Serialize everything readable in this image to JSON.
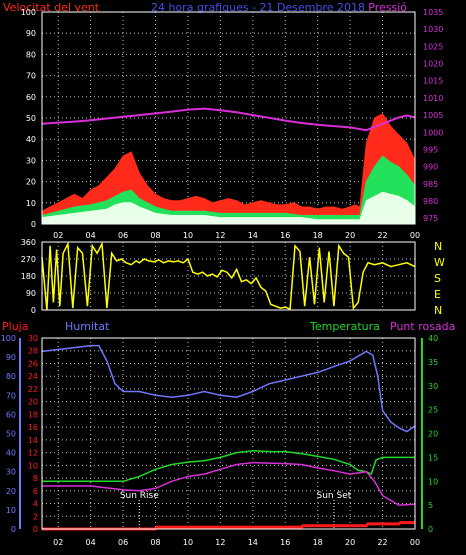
{
  "colors": {
    "background": "#000000",
    "frame": "#ffffff",
    "grid": "#bfbfbf",
    "tick_text": "#ffffff",
    "wind_peak": "#ff2a1a",
    "wind_mid": "#22e05a",
    "wind_avg": "#e8ffe8",
    "pressure": "#d82fd8",
    "title": "#3f4fe8",
    "wind_dir": "#ffff00",
    "compass": "#ffff00",
    "rain": "#ff1a1a",
    "humidity": "#6f78ff",
    "temperature": "#22d82a",
    "dewpoint": "#d82fd8",
    "sun_marker": "#ffffff"
  },
  "chart_data": [
    {
      "type": "line",
      "panel": "wind-and-pressure",
      "title": "24 hora grafiques - 21 Desembre 2018",
      "left_label": "Velocitat del vent",
      "right_label": "Pressió",
      "x_ticks": [
        "02",
        "04",
        "06",
        "08",
        "10",
        "12",
        "14",
        "16",
        "18",
        "20",
        "22",
        "00"
      ],
      "x_range": [
        1,
        24
      ],
      "ylim": [
        0,
        100
      ],
      "y_ticks": [
        0,
        10,
        20,
        30,
        40,
        50,
        60,
        70,
        80,
        90,
        100
      ],
      "y2lim": [
        973.3,
        1035
      ],
      "y2_ticks": [
        975,
        980,
        985,
        990,
        995,
        1000,
        1005,
        1010,
        1015,
        1020,
        1025,
        1030,
        1035
      ],
      "grid": true,
      "series": [
        {
          "name": "Velocitat del vent",
          "color_key": "wind_peak",
          "axis": "left",
          "style": "filled",
          "x": [
            1,
            1.5,
            2,
            2.5,
            3,
            3.5,
            4,
            4.5,
            5,
            5.5,
            6,
            6.5,
            7,
            7.5,
            8,
            8.5,
            9,
            9.5,
            10,
            10.5,
            11,
            11.5,
            12,
            12.5,
            13,
            13.5,
            14,
            14.5,
            15,
            15.5,
            16,
            16.5,
            17,
            17.5,
            18,
            18.5,
            19,
            19.5,
            20,
            20.3,
            20.6,
            21,
            21.5,
            22,
            22.5,
            23,
            23.5,
            24
          ],
          "values": [
            6,
            8,
            10,
            12,
            14,
            12,
            16,
            18,
            22,
            26,
            32,
            34,
            24,
            18,
            14,
            12,
            11,
            11,
            12,
            13,
            12,
            10,
            11,
            12,
            11,
            9,
            10,
            11,
            10,
            9,
            9,
            10,
            8,
            8,
            7,
            8,
            8,
            7,
            8,
            9,
            8,
            38,
            50,
            52,
            46,
            42,
            38,
            30
          ]
        },
        {
          "name": "",
          "color_key": "wind_mid",
          "axis": "left",
          "style": "filled",
          "x": [
            1,
            2,
            3,
            4,
            5,
            5.5,
            6,
            6.5,
            7,
            8,
            9,
            10,
            11,
            12,
            13,
            14,
            15,
            16,
            17,
            18,
            19,
            20,
            20.3,
            20.6,
            21,
            21.5,
            22,
            22.5,
            23,
            23.5,
            24
          ],
          "values": [
            4,
            6,
            8,
            9,
            11,
            13,
            15,
            16,
            12,
            8,
            6,
            6,
            6,
            5,
            5,
            5,
            5,
            5,
            4,
            4,
            4,
            4,
            4,
            4,
            20,
            27,
            32,
            29,
            27,
            23,
            18
          ]
        },
        {
          "name": "",
          "color_key": "wind_avg",
          "axis": "left",
          "style": "filled",
          "x": [
            1,
            2,
            3,
            4,
            5,
            5.5,
            6,
            6.5,
            7,
            8,
            9,
            10,
            11,
            12,
            13,
            14,
            15,
            16,
            17,
            18,
            19,
            20,
            20.3,
            20.6,
            21,
            21.5,
            22,
            22.5,
            23,
            23.5,
            24
          ],
          "values": [
            3,
            4,
            5,
            6,
            7,
            9,
            10,
            10,
            8,
            5,
            4,
            4,
            4,
            3,
            3,
            3,
            3,
            3,
            3,
            2,
            2,
            2,
            2,
            2,
            11,
            13,
            15,
            14,
            13,
            11,
            8
          ]
        },
        {
          "name": "Pressió",
          "color_key": "pressure",
          "axis": "right",
          "style": "line",
          "x": [
            1,
            2,
            3,
            4,
            5,
            6,
            7,
            8,
            9,
            10,
            11,
            12,
            13,
            14,
            15,
            16,
            17,
            18,
            19,
            20,
            21,
            22,
            23,
            23.5,
            24
          ],
          "values": [
            1002.5,
            1002.8,
            1003.1,
            1003.5,
            1004,
            1004.5,
            1005,
            1005.5,
            1006,
            1006.6,
            1006.9,
            1006.4,
            1005.8,
            1005,
            1004.2,
            1003.4,
            1002.7,
            1002.2,
            1001.8,
            1001.4,
            1000.6,
            1002.5,
            1004.3,
            1004.9,
            1004.3
          ]
        }
      ]
    },
    {
      "type": "line",
      "panel": "wind-direction",
      "x_range": [
        1,
        24
      ],
      "ylim": [
        0,
        360
      ],
      "y_ticks": [
        0,
        90,
        180,
        270,
        360
      ],
      "compass": [
        "N",
        "W",
        "S",
        "E",
        "N"
      ],
      "grid": true,
      "series": [
        {
          "name": "",
          "color_key": "wind_dir",
          "x": [
            1,
            1.3,
            1.5,
            1.7,
            1.9,
            2.1,
            2.3,
            2.6,
            2.9,
            3.2,
            3.5,
            3.8,
            4.1,
            4.4,
            4.7,
            5,
            5.3,
            5.6,
            5.9,
            6.2,
            6.5,
            6.8,
            7,
            7.3,
            7.6,
            7.9,
            8.2,
            8.5,
            8.8,
            9.1,
            9.4,
            9.7,
            10,
            10.3,
            10.6,
            10.9,
            11.2,
            11.5,
            11.8,
            12.1,
            12.4,
            12.7,
            13,
            13.3,
            13.6,
            13.9,
            14.2,
            14.5,
            14.8,
            15.1,
            15.4,
            15.7,
            16,
            16.3,
            16.6,
            16.9,
            17.2,
            17.5,
            17.8,
            18.1,
            18.4,
            18.7,
            19,
            19.3,
            19.6,
            19.9,
            20.2,
            20.5,
            20.8,
            21.1,
            21.5,
            22,
            22.5,
            23,
            23.5,
            24
          ],
          "values": [
            280,
            0,
            340,
            40,
            320,
            20,
            300,
            350,
            10,
            330,
            300,
            20,
            340,
            300,
            350,
            10,
            300,
            260,
            270,
            250,
            240,
            260,
            250,
            270,
            260,
            255,
            265,
            250,
            260,
            255,
            260,
            250,
            270,
            200,
            190,
            200,
            180,
            190,
            175,
            210,
            200,
            170,
            215,
            150,
            160,
            140,
            170,
            120,
            100,
            30,
            20,
            10,
            15,
            5,
            340,
            310,
            20,
            280,
            30,
            330,
            40,
            310,
            20,
            340,
            300,
            280,
            10,
            40,
            200,
            250,
            240,
            250,
            230,
            240,
            250,
            230
          ]
        }
      ]
    },
    {
      "type": "line",
      "panel": "rain-humidity-temperature",
      "labels": {
        "pluja": "Pluja",
        "humitat": "Humitat",
        "temperatura": "Temperatura",
        "punt_rosada": "Punt rosada"
      },
      "x_ticks": [
        "02",
        "04",
        "06",
        "08",
        "10",
        "12",
        "14",
        "16",
        "18",
        "20",
        "22",
        "00"
      ],
      "x_range": [
        1,
        24
      ],
      "humidity_ticks": [
        0,
        10,
        20,
        30,
        40,
        50,
        60,
        70,
        80,
        90,
        100
      ],
      "rain_ticks": [
        0,
        2,
        4,
        6,
        8,
        10,
        12,
        14,
        16,
        18,
        20,
        22,
        24,
        26,
        28,
        30
      ],
      "rain_lim": [
        0,
        30
      ],
      "temp_ticks": [
        0,
        5,
        10,
        15,
        20,
        25,
        30,
        35,
        40
      ],
      "temp_lim": [
        0,
        40
      ],
      "grid": true,
      "annotations": [
        {
          "label": "Sun Rise",
          "x": 7.0
        },
        {
          "label": "Sun Set",
          "x": 19.0
        }
      ],
      "series": [
        {
          "name": "Humitat",
          "color_key": "humidity",
          "axis": "humidity",
          "x": [
            1,
            2,
            3,
            4,
            4.5,
            5,
            5.5,
            6,
            7,
            8,
            9,
            10,
            11,
            12,
            13,
            14,
            15,
            16,
            17,
            18,
            19,
            20,
            21,
            21.4,
            21.7,
            22,
            22.5,
            23,
            23.5,
            24
          ],
          "values": [
            93,
            94,
            95,
            96,
            96,
            88,
            76,
            72,
            72,
            70,
            69,
            70,
            72,
            70,
            69,
            72,
            76,
            78,
            80,
            82,
            85,
            88,
            93,
            91,
            80,
            62,
            56,
            53,
            51,
            54
          ]
        },
        {
          "name": "Temperatura",
          "color_key": "temperature",
          "axis": "temp",
          "x": [
            1,
            2,
            3,
            4,
            5,
            6,
            7,
            8,
            9,
            10,
            11,
            12,
            13,
            14,
            15,
            16,
            17,
            18,
            19,
            20,
            20.5,
            21,
            21.3,
            21.6,
            22,
            23,
            24
          ],
          "values": [
            10,
            10,
            10,
            10,
            10,
            10,
            11,
            12.5,
            13.5,
            14,
            14.3,
            15,
            16,
            16.4,
            16.2,
            16.2,
            15.8,
            15.2,
            14.6,
            13.5,
            12.3,
            12,
            11.5,
            14.5,
            15,
            15,
            15
          ]
        },
        {
          "name": "Punt rosada",
          "color_key": "dewpoint",
          "axis": "temp",
          "x": [
            1,
            2,
            3,
            4,
            5,
            6,
            7,
            8,
            9,
            10,
            11,
            12,
            13,
            14,
            15,
            16,
            17,
            18,
            19,
            20,
            21,
            21.5,
            22,
            23,
            24
          ],
          "values": [
            9,
            9,
            9,
            9,
            8.6,
            8.2,
            8,
            8.5,
            10,
            11,
            11.5,
            12.5,
            13.5,
            13.9,
            13.8,
            13.7,
            13.5,
            12.8,
            12.2,
            11.5,
            12,
            10,
            7,
            5,
            5.2
          ]
        },
        {
          "name": "Pluja",
          "color_key": "rain",
          "axis": "rain",
          "x": [
            1,
            8,
            8.1,
            17,
            17.1,
            21,
            21.1,
            23,
            23.1,
            24
          ],
          "values": [
            0,
            0,
            0.3,
            0.3,
            0.5,
            0.5,
            0.8,
            0.8,
            1,
            1
          ]
        }
      ]
    }
  ]
}
